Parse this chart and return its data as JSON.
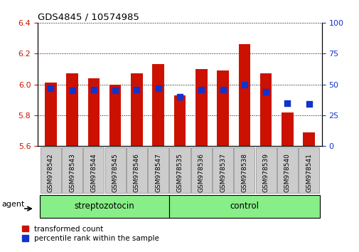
{
  "title": "GDS4845 / 10574985",
  "categories": [
    "GSM978542",
    "GSM978543",
    "GSM978544",
    "GSM978545",
    "GSM978546",
    "GSM978547",
    "GSM978535",
    "GSM978536",
    "GSM978537",
    "GSM978538",
    "GSM978539",
    "GSM978540",
    "GSM978541"
  ],
  "red_values": [
    6.01,
    6.07,
    6.04,
    6.0,
    6.07,
    6.13,
    5.93,
    6.1,
    6.09,
    6.26,
    6.07,
    5.82,
    5.69
  ],
  "blue_values": [
    47,
    45,
    46,
    45,
    46,
    47,
    40,
    46,
    46,
    50,
    44,
    35,
    34
  ],
  "ylim_left": [
    5.6,
    6.4
  ],
  "ylim_right": [
    0,
    100
  ],
  "right_ticks": [
    0,
    25,
    50,
    75,
    100
  ],
  "left_ticks": [
    5.6,
    5.8,
    6.0,
    6.2,
    6.4
  ],
  "bar_color": "#cc1100",
  "dot_color": "#1133cc",
  "streptozotocin_indices": [
    0,
    1,
    2,
    3,
    4,
    5
  ],
  "control_indices": [
    6,
    7,
    8,
    9,
    10,
    11,
    12
  ],
  "streptozotocin_label": "streptozotocin",
  "control_label": "control",
  "agent_label": "agent",
  "legend_red": "transformed count",
  "legend_blue": "percentile rank within the sample",
  "group_bar_color": "#88ee88",
  "tick_bg_color": "#cccccc",
  "bar_bottom": 5.6,
  "dot_marker_size": 36,
  "fig_width": 5.06,
  "fig_height": 3.54
}
